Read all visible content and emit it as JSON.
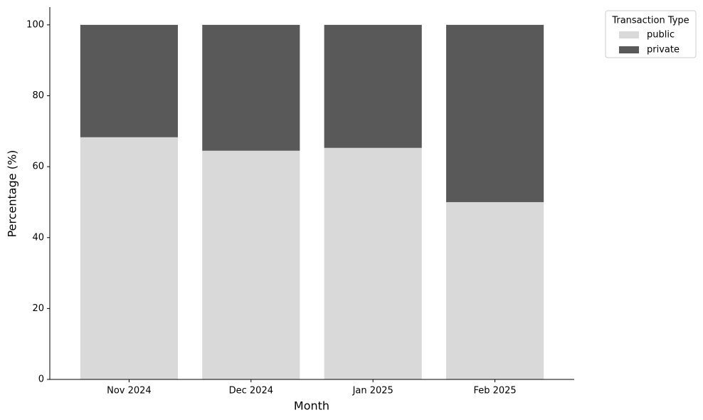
{
  "chart_data": {
    "type": "stacked_bar",
    "xlabel": "Month",
    "ylabel": "Percentage (%)",
    "categories": [
      "Nov 2024",
      "Dec 2024",
      "Jan 2025",
      "Feb 2025"
    ],
    "series": [
      {
        "name": "public",
        "color": "#d9d9d9",
        "values": [
          68.3,
          64.5,
          65.3,
          50.0
        ]
      },
      {
        "name": "private",
        "color": "#595959",
        "values": [
          31.7,
          35.5,
          34.7,
          50.0
        ]
      }
    ],
    "ylim": [
      0,
      105
    ],
    "yticks": [
      0,
      20,
      40,
      60,
      80,
      100
    ],
    "grid": false,
    "legend_title": "Transaction Type",
    "legend_position": "outside-right"
  }
}
